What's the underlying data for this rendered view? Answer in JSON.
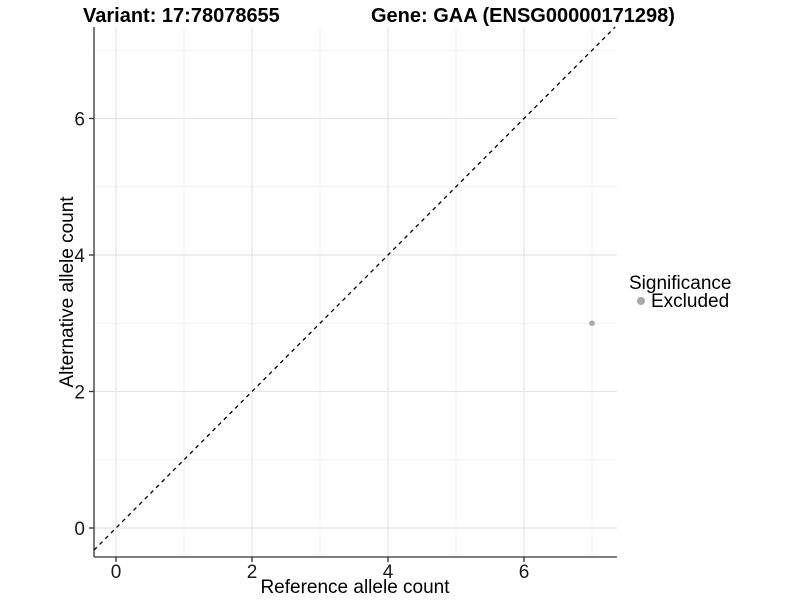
{
  "header": {
    "variant_title": "Variant: 17:78078655",
    "gene_title": "Gene: GAA (ENSG00000171298)"
  },
  "chart_data": {
    "type": "scatter",
    "xlabel": "Reference allele count",
    "ylabel": "Alternative allele count",
    "xlim": [
      -0.37,
      7.37
    ],
    "ylim": [
      -0.42,
      7.34
    ],
    "x_major_ticks": [
      0,
      2,
      4,
      6
    ],
    "y_major_ticks": [
      0,
      2,
      4,
      6
    ],
    "x_minor_ticks": [
      1,
      3,
      5,
      7
    ],
    "y_minor_ticks": [
      1,
      3,
      5,
      7
    ],
    "grid": "on",
    "identity_line": {
      "slope": 1,
      "intercept": 0,
      "style": "dashed",
      "color": "#000000"
    },
    "series": [
      {
        "name": "Excluded",
        "color": "#A8A8A8",
        "points": [
          {
            "x": 7,
            "y": 3
          }
        ]
      }
    ],
    "legend": {
      "title": "Significance",
      "position": "right",
      "items": [
        {
          "label": "Excluded",
          "color": "#A8A8A8"
        }
      ]
    }
  },
  "colors": {
    "background": "#FFFFFF",
    "grid_major": "#E4E4E4",
    "grid_minor": "#F2F2F2",
    "axis_line": "#333333",
    "tick_mark": "#333333",
    "point": "#A8A8A8"
  }
}
